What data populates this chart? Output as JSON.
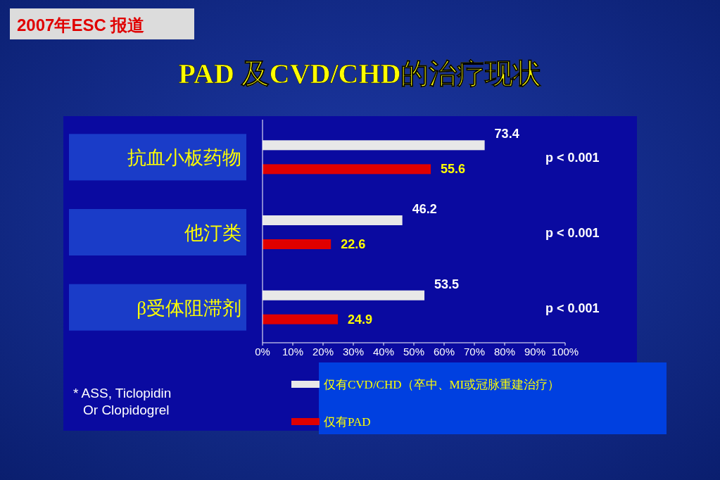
{
  "chart_data": {
    "type": "bar",
    "orientation": "horizontal",
    "title": "PAD 及CVD/CHD的治疗现状",
    "categories": [
      "抗血小板药物",
      "他汀类",
      "β受体阻滞剂"
    ],
    "series": [
      {
        "name": "仅有CVD/CHD（卒中、MI或冠脉重建治疗）",
        "color": "#e8e8e8",
        "values": [
          73.4,
          46.2,
          53.5
        ]
      },
      {
        "name": "仅有PAD",
        "color": "#e00000",
        "values": [
          55.6,
          22.6,
          24.9
        ]
      }
    ],
    "xlim": [
      0,
      100
    ],
    "xticks": [
      {
        "value": 0,
        "label": "0%"
      },
      {
        "value": 10,
        "label": "10%"
      },
      {
        "value": 20,
        "label": "20%"
      },
      {
        "value": 30,
        "label": "30%"
      },
      {
        "value": 40,
        "label": "40%"
      },
      {
        "value": 50,
        "label": "50%"
      },
      {
        "value": 60,
        "label": "60%"
      },
      {
        "value": 70,
        "label": "70%"
      },
      {
        "value": 80,
        "label": "80%"
      },
      {
        "value": 90,
        "label": "90%"
      },
      {
        "value": 100,
        "label": "100%"
      }
    ],
    "data_labels": true,
    "legend": "bottom",
    "annotations": [
      "2007年ESC 报道",
      "p < 0.001",
      "p < 0.001",
      "p < 0.001",
      "* ASS, Ticlopidin\nOr Clopidogrel"
    ]
  }
}
